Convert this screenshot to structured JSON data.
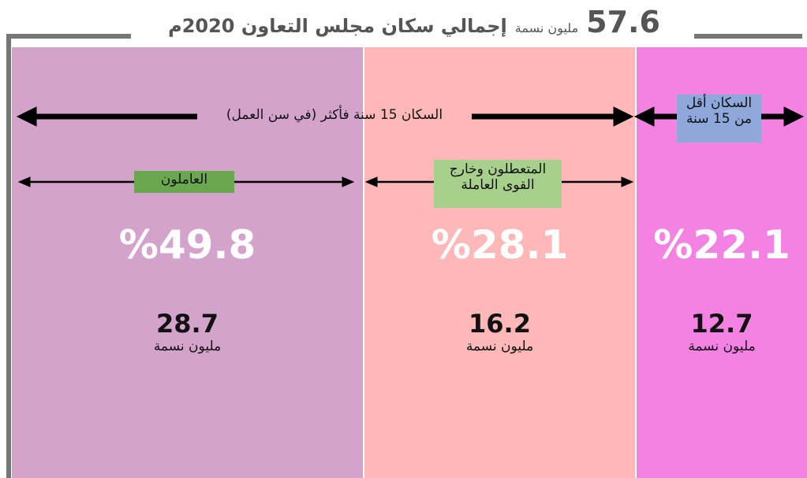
{
  "header": {
    "total": "57.6",
    "unit": "مليون نسمة",
    "title": "إجمالي سكان مجلس التعاون 2020م"
  },
  "groups": {
    "working_age": "السكان 15 سنة فأكثر (في سن العمل)",
    "under_15": [
      "السكان أقل",
      "من 15 سنة"
    ]
  },
  "segments": [
    {
      "label": [
        "العاملون"
      ],
      "percent": "%49.8",
      "value": "28.7",
      "unit": "مليون نسمة"
    },
    {
      "label": [
        "المتعطلون وخارج",
        "القوى العاملة"
      ],
      "percent": "%28.1",
      "value": "16.2",
      "unit": "مليون نسمة"
    },
    {
      "label": [
        "السكان أقل",
        "من 15 سنة"
      ],
      "percent": "%22.1",
      "value": "12.7",
      "unit": "مليون نسمة"
    }
  ]
}
